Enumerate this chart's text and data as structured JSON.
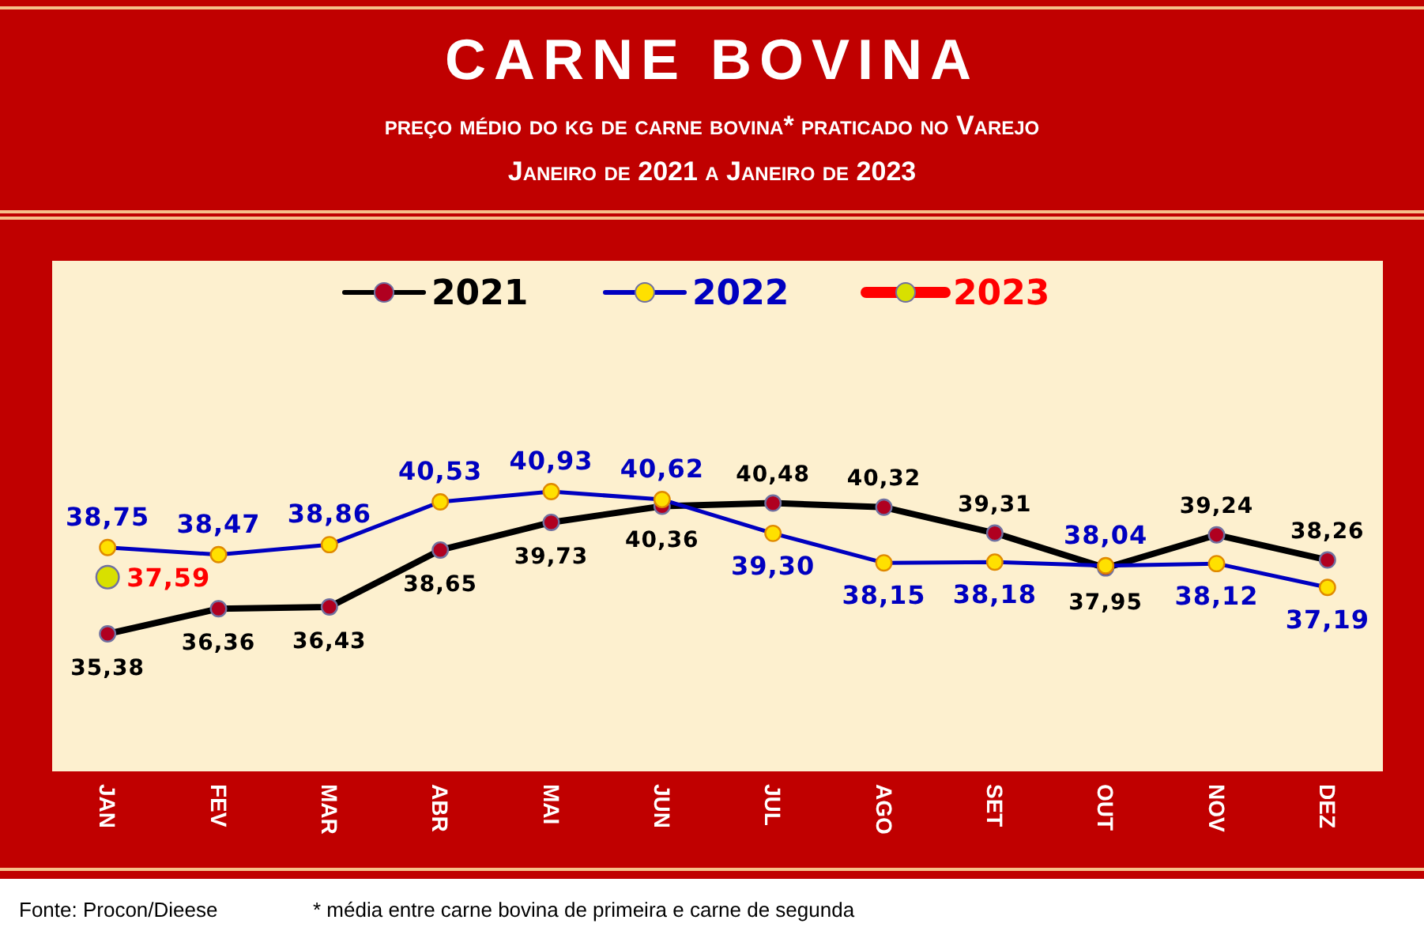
{
  "chart_data": {
    "type": "line",
    "title": "CARNE BOVINA",
    "subtitle": [
      "preço médio do kg de carne bovina* praticado no Varejo",
      "Janeiro de 2021 a Janeiro de 2023"
    ],
    "categories": [
      "JAN",
      "FEV",
      "MAR",
      "ABR",
      "MAI",
      "JUN",
      "JUL",
      "AGO",
      "SET",
      "OUT",
      "NOV",
      "DEZ"
    ],
    "series": [
      {
        "name": "2021",
        "color": "#000000",
        "values": [
          35.38,
          36.36,
          36.43,
          38.65,
          39.73,
          40.36,
          40.48,
          40.32,
          39.31,
          37.95,
          39.24,
          38.26
        ],
        "value_labels": [
          "35,38",
          "36,36",
          "36,43",
          "38,65",
          "39,73",
          "40,36",
          "40,48",
          "40,32",
          "39,31",
          "37,95",
          "39,24",
          "38,26"
        ]
      },
      {
        "name": "2022",
        "color": "#0000c0",
        "values": [
          38.75,
          38.47,
          38.86,
          40.53,
          40.93,
          40.62,
          39.3,
          38.15,
          38.18,
          38.04,
          38.12,
          37.19
        ],
        "value_labels": [
          "38,75",
          "38,47",
          "38,86",
          "40,53",
          "40,93",
          "40,62",
          "39,30",
          "38,15",
          "38,18",
          "38,04",
          "38,12",
          "37,19"
        ]
      },
      {
        "name": "2023",
        "color": "#d8e000",
        "values": [
          37.59,
          null,
          null,
          null,
          null,
          null,
          null,
          null,
          null,
          null,
          null,
          null
        ],
        "value_labels": [
          "37,59",
          null,
          null,
          null,
          null,
          null,
          null,
          null,
          null,
          null,
          null,
          null
        ]
      }
    ],
    "tick_labels": "x",
    "legend": "top",
    "marker": "circle",
    "line_style": "solid",
    "annotations": [
      "Fonte: Procon/Dieese",
      "* média entre carne bovina de primeira e carne de segunda"
    ]
  }
}
